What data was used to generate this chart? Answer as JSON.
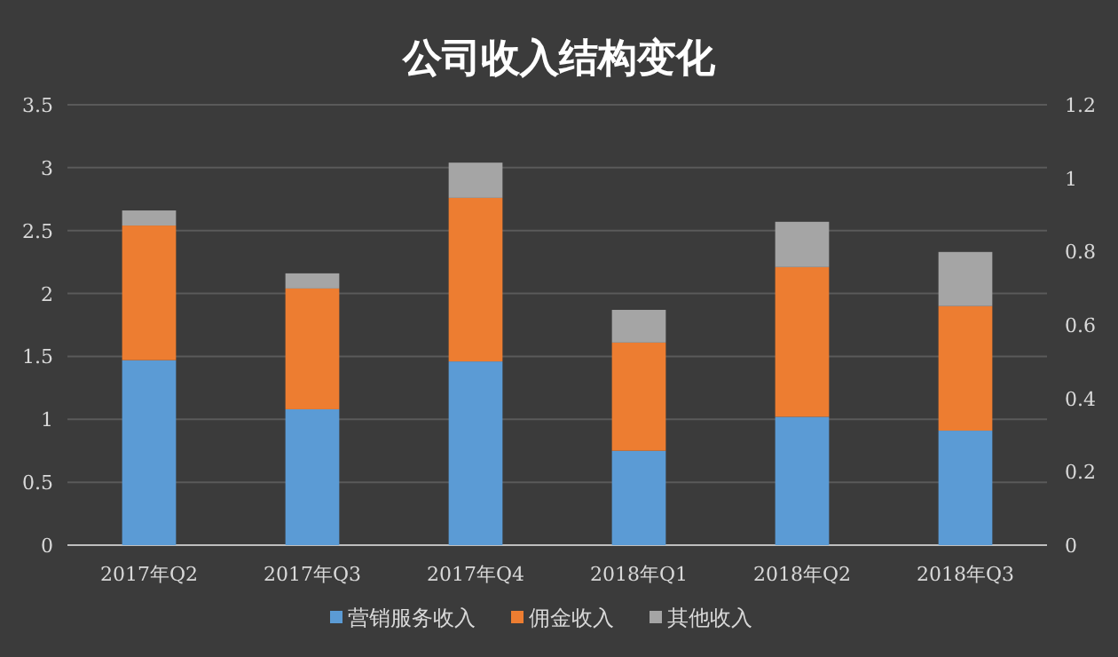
{
  "chart_data": {
    "type": "bar",
    "stacked": true,
    "title": "公司收入结构变化",
    "categories": [
      "2017年Q2",
      "2017年Q3",
      "2017年Q4",
      "2018年Q1",
      "2018年Q2",
      "2018年Q3"
    ],
    "series": [
      {
        "name": "营销服务收入",
        "color": "#5b9bd5",
        "values": [
          1.47,
          1.08,
          1.46,
          0.75,
          1.02,
          0.91
        ]
      },
      {
        "name": "佣金收入",
        "color": "#ed7d31",
        "values": [
          1.07,
          0.96,
          1.3,
          0.86,
          1.19,
          0.99
        ]
      },
      {
        "name": "其他收入",
        "color": "#a5a5a5",
        "values": [
          0.12,
          0.12,
          0.28,
          0.26,
          0.36,
          0.43
        ]
      }
    ],
    "ylim": [
      0,
      3.5
    ],
    "yticks": [
      0,
      {
        "value": 0.5,
        "label": "0.5"
      },
      1,
      {
        "value": 1.5,
        "label": "1.5"
      },
      2,
      {
        "value": 2.5,
        "label": "2.5"
      },
      3,
      {
        "value": 3.5,
        "label": "3.5"
      }
    ],
    "y2lim": [
      0,
      1.2
    ],
    "y2ticks": [
      0,
      {
        "value": 0.2,
        "label": "0.2"
      },
      {
        "value": 0.4,
        "label": "0.4"
      },
      {
        "value": 0.6,
        "label": "0.6"
      },
      {
        "value": 0.8,
        "label": "0.8"
      },
      1,
      {
        "value": 1.2,
        "label": "1.2"
      }
    ],
    "grid": "y",
    "legend": "bottom"
  }
}
